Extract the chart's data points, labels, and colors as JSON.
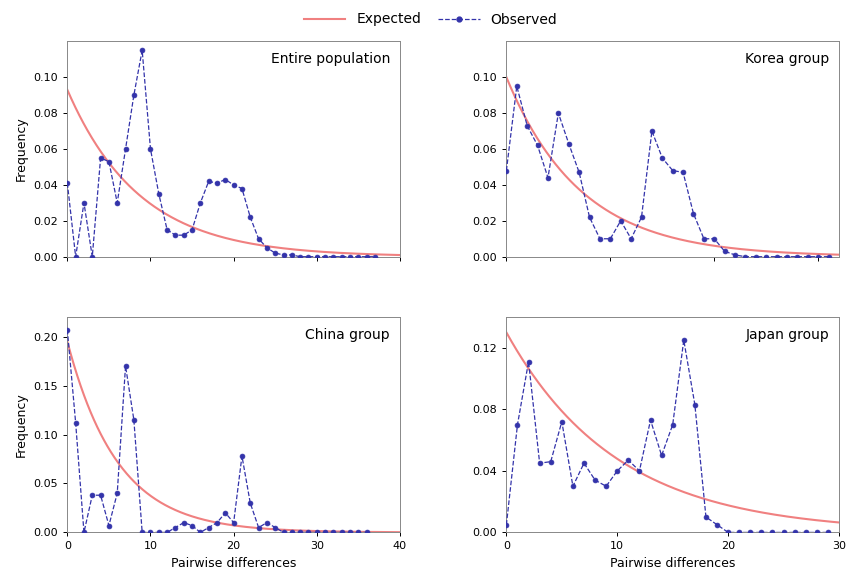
{
  "panels": [
    {
      "title": "Entire population",
      "xlim": [
        0,
        40
      ],
      "ylim": [
        0,
        0.12
      ],
      "yticks": [
        0,
        0.02,
        0.04,
        0.06,
        0.08,
        0.1
      ],
      "xticks": [
        0,
        10,
        20,
        30,
        40
      ],
      "expected_decay": 0.115,
      "expected_scale": 0.093,
      "observed_x": [
        0,
        1,
        2,
        3,
        4,
        5,
        6,
        7,
        8,
        9,
        10,
        11,
        12,
        13,
        14,
        15,
        16,
        17,
        18,
        19,
        20,
        21,
        22,
        23,
        24,
        25,
        26,
        27,
        28,
        29,
        30,
        31,
        32,
        33,
        34,
        35,
        36,
        37
      ],
      "observed_y": [
        0.041,
        0.0,
        0.03,
        0.0,
        0.055,
        0.053,
        0.03,
        0.06,
        0.09,
        0.115,
        0.06,
        0.035,
        0.015,
        0.012,
        0.012,
        0.015,
        0.03,
        0.042,
        0.041,
        0.043,
        0.04,
        0.038,
        0.022,
        0.01,
        0.005,
        0.002,
        0.001,
        0.001,
        0.0,
        0.0,
        0.0,
        0.0,
        0.0,
        0.0,
        0.0,
        0.0,
        0.0,
        0.0
      ]
    },
    {
      "title": "Korea group",
      "xlim": [
        0,
        32
      ],
      "ylim": [
        0,
        0.12
      ],
      "yticks": [
        0,
        0.02,
        0.04,
        0.06,
        0.08,
        0.1
      ],
      "xticks": [
        0,
        10,
        20,
        30
      ],
      "expected_decay": 0.14,
      "expected_scale": 0.1,
      "observed_x": [
        0,
        1,
        2,
        3,
        4,
        5,
        6,
        7,
        8,
        9,
        10,
        11,
        12,
        13,
        14,
        15,
        16,
        17,
        18,
        19,
        20,
        21,
        22,
        23,
        24,
        25,
        26,
        27,
        28,
        29,
        30,
        31
      ],
      "observed_y": [
        0.048,
        0.095,
        0.073,
        0.062,
        0.044,
        0.08,
        0.063,
        0.047,
        0.022,
        0.01,
        0.01,
        0.02,
        0.01,
        0.022,
        0.07,
        0.055,
        0.048,
        0.047,
        0.024,
        0.01,
        0.01,
        0.003,
        0.001,
        0.0,
        0.0,
        0.0,
        0.0,
        0.0,
        0.0,
        0.0,
        0.0,
        0.0
      ]
    },
    {
      "title": "China group",
      "xlim": [
        0,
        40
      ],
      "ylim": [
        0,
        0.22
      ],
      "yticks": [
        0,
        0.05,
        0.1,
        0.15,
        0.2
      ],
      "xticks": [
        0,
        10,
        20,
        30,
        40
      ],
      "expected_decay": 0.165,
      "expected_scale": 0.195,
      "observed_x": [
        0,
        1,
        2,
        3,
        4,
        5,
        6,
        7,
        8,
        9,
        10,
        11,
        12,
        13,
        14,
        15,
        16,
        17,
        18,
        19,
        20,
        21,
        22,
        23,
        24,
        25,
        26,
        27,
        28,
        29,
        30,
        31,
        32,
        33,
        34,
        35,
        36
      ],
      "observed_y": [
        0.207,
        0.112,
        0.0,
        0.038,
        0.038,
        0.007,
        0.04,
        0.17,
        0.115,
        0.0,
        0.0,
        0.0,
        0.0,
        0.005,
        0.01,
        0.007,
        0.0,
        0.005,
        0.01,
        0.02,
        0.01,
        0.078,
        0.03,
        0.005,
        0.01,
        0.005,
        0.0,
        0.0,
        0.0,
        0.0,
        0.0,
        0.0,
        0.0,
        0.0,
        0.0,
        0.0,
        0.0
      ]
    },
    {
      "title": "Japan group",
      "xlim": [
        0,
        30
      ],
      "ylim": [
        0,
        0.14
      ],
      "yticks": [
        0,
        0.04,
        0.08,
        0.12
      ],
      "xticks": [
        0,
        10,
        20,
        30
      ],
      "expected_decay": 0.1,
      "expected_scale": 0.13,
      "observed_x": [
        0,
        1,
        2,
        3,
        4,
        5,
        6,
        7,
        8,
        9,
        10,
        11,
        12,
        13,
        14,
        15,
        16,
        17,
        18,
        19,
        20,
        21,
        22,
        23,
        24,
        25,
        26,
        27,
        28,
        29
      ],
      "observed_y": [
        0.005,
        0.07,
        0.111,
        0.045,
        0.046,
        0.072,
        0.03,
        0.045,
        0.034,
        0.03,
        0.04,
        0.047,
        0.04,
        0.073,
        0.05,
        0.07,
        0.125,
        0.083,
        0.01,
        0.005,
        0.0,
        0.0,
        0.0,
        0.0,
        0.0,
        0.0,
        0.0,
        0.0,
        0.0,
        0.0
      ]
    }
  ],
  "expected_color": "#F08080",
  "observed_color": "#3333AA",
  "observed_marker": "o",
  "observed_linestyle": "--",
  "expected_linestyle": "-",
  "xlabel": "Pairwise differences",
  "ylabel": "Frequency",
  "legend_expected": "Expected",
  "legend_observed": "Observed",
  "background_color": "#ffffff",
  "title_fontsize": 10,
  "label_fontsize": 9,
  "tick_fontsize": 8,
  "marker_size": 3.5,
  "obs_linewidth": 0.9,
  "exp_linewidth": 1.5
}
